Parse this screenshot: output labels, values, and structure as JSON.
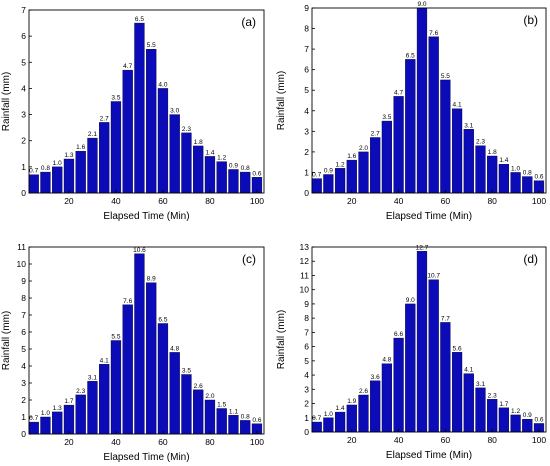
{
  "chart_data": [
    {
      "type": "bar",
      "panel_label": "(a)",
      "xlabel": "Elapsed Time (Min)",
      "ylabel": "Rainfall (mm)",
      "xlim": [
        3,
        103
      ],
      "ylim": [
        0,
        7
      ],
      "xticks": [
        20,
        40,
        60,
        80,
        100
      ],
      "yticks": [
        0,
        1,
        2,
        3,
        4,
        5,
        6,
        7
      ],
      "x": [
        5,
        10,
        15,
        20,
        25,
        30,
        35,
        40,
        45,
        50,
        55,
        60,
        65,
        70,
        75,
        80,
        85,
        90,
        95,
        100
      ],
      "values": [
        0.7,
        0.8,
        1.0,
        1.3,
        1.6,
        2.1,
        2.7,
        3.5,
        4.7,
        6.5,
        5.5,
        4.0,
        3.0,
        2.3,
        1.8,
        1.4,
        1.2,
        0.9,
        0.8,
        0.6
      ],
      "value_labels": [
        "0.7",
        "0.8",
        "1.0",
        "1.3",
        "1.6",
        "2.1",
        "2.7",
        "3.5",
        "4.7",
        "6.5",
        "5.5",
        "4.0",
        "3.0",
        "2.3",
        "1.8",
        "1.4",
        "1.2",
        "0.9",
        "0.8",
        "0.6"
      ],
      "bar_color": "#0b0bb8",
      "grid": false
    },
    {
      "type": "bar",
      "panel_label": "(b)",
      "xlabel": "Elapsed Time (Min)",
      "ylabel": "Rainfall (mm)",
      "xlim": [
        3,
        103
      ],
      "ylim": [
        0,
        9
      ],
      "xticks": [
        20,
        40,
        60,
        80,
        100
      ],
      "yticks": [
        0,
        1,
        2,
        3,
        4,
        5,
        6,
        7,
        8,
        9
      ],
      "x": [
        5,
        10,
        15,
        20,
        25,
        30,
        35,
        40,
        45,
        50,
        55,
        60,
        65,
        70,
        75,
        80,
        85,
        90,
        95,
        100
      ],
      "values": [
        0.7,
        0.9,
        1.2,
        1.6,
        2.0,
        2.7,
        3.5,
        4.7,
        6.5,
        9.0,
        7.6,
        5.5,
        4.1,
        3.1,
        2.3,
        1.8,
        1.4,
        1.0,
        0.8,
        0.6
      ],
      "value_labels": [
        "0.7",
        "0.9",
        "1.2",
        "1.6",
        "2.0",
        "2.7",
        "3.5",
        "4.7",
        "6.5",
        "9.0",
        "7.6",
        "5.5",
        "4.1",
        "3.1",
        "2.3",
        "1.8",
        "1.4",
        "1.0",
        "0.8",
        "0.6"
      ],
      "bar_color": "#0b0bb8",
      "grid": false
    },
    {
      "type": "bar",
      "panel_label": "(c)",
      "xlabel": "Elapsed Time (Min)",
      "ylabel": "Rainfall (mm)",
      "xlim": [
        3,
        103
      ],
      "ylim": [
        0,
        11
      ],
      "xticks": [
        20,
        40,
        60,
        80,
        100
      ],
      "yticks": [
        0,
        1,
        2,
        3,
        4,
        5,
        6,
        7,
        8,
        9,
        10,
        11
      ],
      "x": [
        5,
        10,
        15,
        20,
        25,
        30,
        35,
        40,
        45,
        50,
        55,
        60,
        65,
        70,
        75,
        80,
        85,
        90,
        95,
        100
      ],
      "values": [
        0.7,
        1.0,
        1.3,
        1.7,
        2.3,
        3.1,
        4.1,
        5.5,
        7.6,
        10.6,
        8.9,
        6.5,
        4.8,
        3.5,
        2.6,
        2.0,
        1.5,
        1.1,
        0.8,
        0.6
      ],
      "value_labels": [
        "0.7",
        "1.0",
        "1.3",
        "1.7",
        "2.3",
        "3.1",
        "4.1",
        "5.5",
        "7.6",
        "10.6",
        "8.9",
        "6.5",
        "4.8",
        "3.5",
        "2.6",
        "2.0",
        "1.5",
        "1.1",
        "0.8",
        "0.6"
      ],
      "bar_color": "#0b0bb8",
      "grid": false
    },
    {
      "type": "bar",
      "panel_label": "(d)",
      "xlabel": "Elapsed Time (Min)",
      "ylabel": "Rainfall (mm)",
      "xlim": [
        3,
        103
      ],
      "ylim": [
        0,
        13
      ],
      "xticks": [
        20,
        40,
        60,
        80,
        100
      ],
      "yticks": [
        0,
        1,
        2,
        3,
        4,
        5,
        6,
        7,
        8,
        9,
        10,
        11,
        12,
        13
      ],
      "x": [
        5,
        10,
        15,
        20,
        25,
        30,
        35,
        40,
        45,
        50,
        55,
        60,
        65,
        70,
        75,
        80,
        85,
        90,
        95,
        100
      ],
      "values": [
        0.7,
        1.0,
        1.4,
        1.9,
        2.6,
        3.6,
        4.8,
        6.6,
        9.0,
        12.7,
        10.7,
        7.7,
        5.6,
        4.1,
        3.1,
        2.3,
        1.7,
        1.2,
        0.9,
        0.6
      ],
      "value_labels": [
        "0.7",
        "1.0",
        "1.4",
        "1.9",
        "2.6",
        "3.6",
        "4.8",
        "6.6",
        "9.0",
        "12.7",
        "10.7",
        "7.7",
        "5.6",
        "4.1",
        "3.1",
        "2.3",
        "1.7",
        "1.2",
        "0.9",
        "0.6"
      ],
      "bar_color": "#0b0bb8",
      "grid": false
    }
  ]
}
